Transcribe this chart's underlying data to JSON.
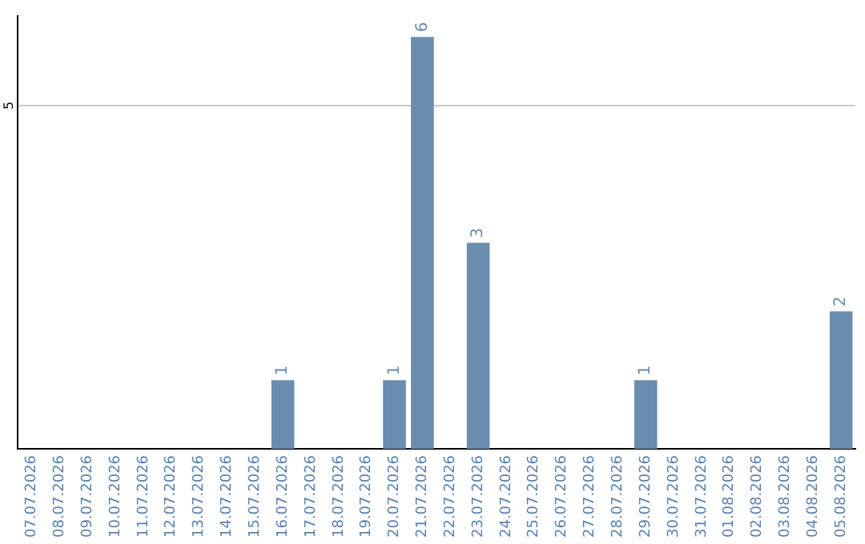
{
  "chart_data": {
    "type": "bar",
    "categories": [
      "07.07.2026",
      "08.07.2026",
      "09.07.2026",
      "10.07.2026",
      "11.07.2026",
      "12.07.2026",
      "13.07.2026",
      "14.07.2026",
      "15.07.2026",
      "16.07.2026",
      "17.07.2026",
      "18.07.2026",
      "19.07.2026",
      "20.07.2026",
      "21.07.2026",
      "22.07.2026",
      "23.07.2026",
      "24.07.2026",
      "25.07.2026",
      "26.07.2026",
      "27.07.2026",
      "28.07.2026",
      "29.07.2026",
      "30.07.2026",
      "31.07.2026",
      "01.08.2026",
      "02.08.2026",
      "03.08.2026",
      "04.08.2026",
      "05.08.2026"
    ],
    "values": [
      0,
      0,
      0,
      0,
      0,
      0,
      0,
      0,
      0,
      1,
      0,
      0,
      0,
      1,
      6,
      0,
      3,
      0,
      0,
      0,
      0,
      0,
      1,
      0,
      0,
      0,
      0,
      0,
      0,
      2
    ],
    "value_labels": [
      null,
      null,
      null,
      null,
      null,
      null,
      null,
      null,
      null,
      "1",
      null,
      null,
      null,
      "1",
      "6",
      null,
      "3",
      null,
      null,
      null,
      null,
      null,
      "1",
      null,
      null,
      null,
      null,
      null,
      null,
      "2"
    ],
    "color": "#6a8caf",
    "ylim": [
      0,
      6.3
    ],
    "yticks": [
      5
    ],
    "grid": "y",
    "legend": false
  }
}
